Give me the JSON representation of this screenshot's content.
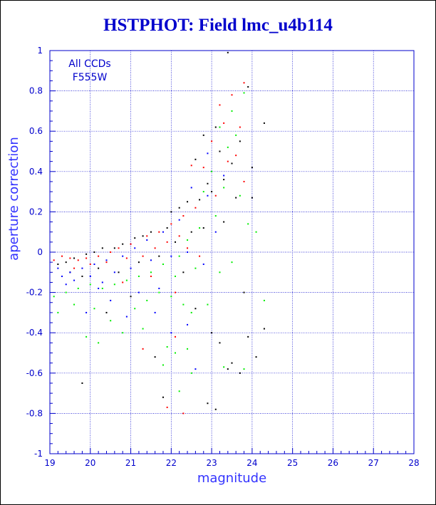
{
  "title": "HSTPHOT: Field lmc_u4b114",
  "chart_data": {
    "type": "scatter",
    "title": "HSTPHOT: Field lmc_u4b114",
    "xlabel": "magnitude",
    "ylabel": "aperture correction",
    "xlim": [
      19,
      28
    ],
    "ylim": [
      -1,
      1
    ],
    "xticks": [
      "19",
      "20",
      "21",
      "22",
      "23",
      "24",
      "25",
      "26",
      "27",
      "28"
    ],
    "yticks": [
      "-1",
      "-0.8",
      "-0.6",
      "-0.4",
      "-0.2",
      "0",
      "0.2",
      "0.4",
      "0.6",
      "0.8",
      "1"
    ],
    "grid": true,
    "annotations": [
      "All CCDs",
      "F555W"
    ],
    "series": [
      {
        "color": "#000000",
        "points": [
          [
            23.4,
            0.99
          ],
          [
            23.9,
            0.82
          ],
          [
            24.3,
            0.64
          ],
          [
            23.1,
            0.62
          ],
          [
            22.8,
            0.58
          ],
          [
            23.7,
            0.55
          ],
          [
            23.2,
            0.5
          ],
          [
            22.6,
            0.46
          ],
          [
            23.5,
            0.44
          ],
          [
            24.0,
            0.42
          ],
          [
            23.3,
            0.36
          ],
          [
            22.9,
            0.34
          ],
          [
            23.0,
            0.3
          ],
          [
            22.7,
            0.26
          ],
          [
            23.6,
            0.27
          ],
          [
            22.4,
            0.25
          ],
          [
            22.2,
            0.22
          ],
          [
            22.0,
            0.2
          ],
          [
            21.9,
            0.12
          ],
          [
            21.5,
            0.1
          ],
          [
            21.3,
            0.08
          ],
          [
            21.1,
            0.07
          ],
          [
            20.8,
            0.04
          ],
          [
            20.6,
            0.02
          ],
          [
            20.3,
            0.02
          ],
          [
            20.1,
            0.0
          ],
          [
            19.9,
            -0.01
          ],
          [
            19.6,
            -0.03
          ],
          [
            19.4,
            -0.05
          ],
          [
            19.2,
            -0.06
          ],
          [
            19.5,
            -0.1
          ],
          [
            19.8,
            -0.12
          ],
          [
            20.2,
            -0.08
          ],
          [
            20.7,
            -0.1
          ],
          [
            21.2,
            -0.05
          ],
          [
            21.7,
            -0.02
          ],
          [
            22.1,
            0.05
          ],
          [
            22.5,
            0.1
          ],
          [
            22.3,
            -0.1
          ],
          [
            22.6,
            -0.28
          ],
          [
            23.0,
            -0.4
          ],
          [
            23.2,
            -0.45
          ],
          [
            23.5,
            -0.55
          ],
          [
            24.3,
            -0.38
          ],
          [
            23.9,
            -0.42
          ],
          [
            24.1,
            -0.52
          ],
          [
            22.9,
            -0.75
          ],
          [
            23.1,
            -0.78
          ],
          [
            21.6,
            -0.52
          ],
          [
            19.8,
            -0.65
          ],
          [
            20.4,
            -0.3
          ],
          [
            21.0,
            -0.22
          ],
          [
            23.8,
            -0.2
          ],
          [
            24.0,
            0.27
          ],
          [
            23.3,
            0.15
          ],
          [
            22.8,
            0.12
          ],
          [
            23.4,
            -0.58
          ],
          [
            23.7,
            -0.6
          ],
          [
            21.8,
            -0.72
          ]
        ]
      },
      {
        "color": "#ff0000",
        "points": [
          [
            23.8,
            0.84
          ],
          [
            23.5,
            0.78
          ],
          [
            23.2,
            0.73
          ],
          [
            23.3,
            0.64
          ],
          [
            23.0,
            0.55
          ],
          [
            23.6,
            0.48
          ],
          [
            23.4,
            0.45
          ],
          [
            22.5,
            0.43
          ],
          [
            22.8,
            0.42
          ],
          [
            23.1,
            0.28
          ],
          [
            22.6,
            0.22
          ],
          [
            22.3,
            0.18
          ],
          [
            22.0,
            0.14
          ],
          [
            21.7,
            0.1
          ],
          [
            21.4,
            0.08
          ],
          [
            21.0,
            0.04
          ],
          [
            20.7,
            0.02
          ],
          [
            20.5,
            0.0
          ],
          [
            20.2,
            -0.02
          ],
          [
            19.9,
            -0.03
          ],
          [
            19.7,
            -0.04
          ],
          [
            19.5,
            -0.03
          ],
          [
            19.3,
            -0.02
          ],
          [
            19.1,
            -0.04
          ],
          [
            19.6,
            -0.08
          ],
          [
            20.0,
            -0.06
          ],
          [
            20.4,
            -0.05
          ],
          [
            20.9,
            -0.03
          ],
          [
            21.3,
            -0.02
          ],
          [
            21.6,
            0.02
          ],
          [
            21.9,
            0.05
          ],
          [
            22.2,
            0.08
          ],
          [
            22.4,
            0.02
          ],
          [
            22.7,
            -0.02
          ],
          [
            21.5,
            -0.12
          ],
          [
            20.8,
            -0.15
          ],
          [
            22.1,
            -0.2
          ],
          [
            21.3,
            -0.48
          ],
          [
            22.1,
            -0.42
          ],
          [
            22.3,
            -0.8
          ],
          [
            21.9,
            -0.77
          ],
          [
            23.8,
            0.35
          ],
          [
            23.7,
            0.62
          ]
        ]
      },
      {
        "color": "#0000ff",
        "points": [
          [
            22.9,
            0.49
          ],
          [
            23.3,
            0.38
          ],
          [
            22.5,
            0.32
          ],
          [
            22.9,
            0.28
          ],
          [
            22.2,
            0.16
          ],
          [
            21.8,
            0.1
          ],
          [
            21.4,
            0.06
          ],
          [
            21.1,
            0.02
          ],
          [
            20.8,
            -0.02
          ],
          [
            20.4,
            -0.04
          ],
          [
            20.1,
            -0.06
          ],
          [
            19.8,
            -0.08
          ],
          [
            19.5,
            -0.1
          ],
          [
            19.3,
            -0.12
          ],
          [
            19.2,
            -0.08
          ],
          [
            19.6,
            -0.14
          ],
          [
            20.0,
            -0.12
          ],
          [
            20.3,
            -0.15
          ],
          [
            20.6,
            -0.1
          ],
          [
            21.0,
            -0.08
          ],
          [
            21.5,
            -0.04
          ],
          [
            22.0,
            -0.02
          ],
          [
            22.4,
            0.0
          ],
          [
            22.8,
            -0.06
          ],
          [
            21.7,
            -0.18
          ],
          [
            21.2,
            -0.2
          ],
          [
            20.5,
            -0.24
          ],
          [
            19.9,
            -0.3
          ],
          [
            20.9,
            -0.32
          ],
          [
            22.0,
            -0.4
          ],
          [
            22.4,
            -0.36
          ],
          [
            22.6,
            -0.58
          ],
          [
            21.6,
            -0.3
          ],
          [
            20.2,
            -0.18
          ],
          [
            19.4,
            -0.16
          ],
          [
            23.1,
            0.1
          ]
        ]
      },
      {
        "color": "#00ee00",
        "points": [
          [
            23.8,
            0.79
          ],
          [
            23.5,
            0.7
          ],
          [
            23.2,
            0.62
          ],
          [
            23.6,
            0.58
          ],
          [
            23.4,
            0.52
          ],
          [
            23.0,
            0.4
          ],
          [
            23.3,
            0.32
          ],
          [
            23.7,
            0.28
          ],
          [
            22.8,
            0.3
          ],
          [
            23.1,
            0.18
          ],
          [
            22.7,
            0.12
          ],
          [
            22.4,
            0.06
          ],
          [
            22.2,
            -0.02
          ],
          [
            22.6,
            -0.08
          ],
          [
            21.8,
            -0.06
          ],
          [
            21.5,
            -0.1
          ],
          [
            21.2,
            -0.12
          ],
          [
            20.9,
            -0.14
          ],
          [
            20.6,
            -0.16
          ],
          [
            20.3,
            -0.18
          ],
          [
            20.0,
            -0.16
          ],
          [
            19.7,
            -0.18
          ],
          [
            19.4,
            -0.2
          ],
          [
            19.1,
            -0.22
          ],
          [
            19.2,
            -0.3
          ],
          [
            19.6,
            -0.26
          ],
          [
            20.1,
            -0.28
          ],
          [
            20.5,
            -0.34
          ],
          [
            20.8,
            -0.4
          ],
          [
            21.1,
            -0.28
          ],
          [
            21.4,
            -0.24
          ],
          [
            21.7,
            -0.2
          ],
          [
            22.0,
            -0.22
          ],
          [
            22.3,
            -0.26
          ],
          [
            22.5,
            -0.3
          ],
          [
            22.9,
            -0.26
          ],
          [
            23.2,
            -0.1
          ],
          [
            23.5,
            -0.05
          ],
          [
            24.3,
            -0.24
          ],
          [
            21.9,
            -0.47
          ],
          [
            21.8,
            -0.56
          ],
          [
            22.1,
            -0.5
          ],
          [
            22.4,
            -0.48
          ],
          [
            22.5,
            -0.6
          ],
          [
            20.2,
            -0.45
          ],
          [
            19.9,
            -0.42
          ],
          [
            21.3,
            -0.38
          ],
          [
            23.8,
            -0.58
          ],
          [
            23.3,
            -0.57
          ],
          [
            22.2,
            -0.69
          ],
          [
            24.1,
            0.1
          ],
          [
            23.9,
            0.14
          ],
          [
            22.1,
            -0.12
          ]
        ]
      }
    ]
  }
}
